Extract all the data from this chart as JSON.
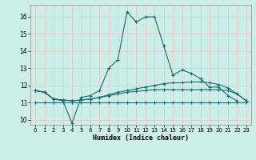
{
  "title": "",
  "xlabel": "Humidex (Indice chaleur)",
  "bg_color": "#cceee8",
  "grid_color": "#e8c8c8",
  "line_color": "#1a6b6b",
  "xlim": [
    -0.5,
    23.5
  ],
  "ylim": [
    9.7,
    16.7
  ],
  "yticks": [
    10,
    11,
    12,
    13,
    14,
    15,
    16
  ],
  "xticks": [
    0,
    1,
    2,
    3,
    4,
    5,
    6,
    7,
    8,
    9,
    10,
    11,
    12,
    13,
    14,
    15,
    16,
    17,
    18,
    19,
    20,
    21,
    22,
    23
  ],
  "series1_x": [
    0,
    1,
    2,
    3,
    4,
    5,
    6,
    7,
    8,
    9,
    10,
    11,
    12,
    13,
    14,
    15,
    16,
    17,
    18,
    19,
    20,
    21,
    22
  ],
  "series1_y": [
    11.7,
    11.6,
    11.2,
    11.1,
    9.8,
    11.3,
    11.4,
    11.7,
    13.0,
    13.5,
    16.3,
    15.7,
    16.0,
    16.0,
    14.3,
    12.6,
    12.9,
    12.7,
    12.4,
    11.9,
    11.9,
    11.4,
    11.1
  ],
  "series2_x": [
    0,
    1,
    2,
    3,
    4,
    5,
    6,
    7,
    8,
    9,
    10,
    11,
    12,
    13,
    14,
    15,
    16,
    17,
    18,
    19,
    20,
    21,
    22,
    23
  ],
  "series2_y": [
    11.7,
    11.6,
    11.2,
    11.15,
    11.1,
    11.15,
    11.2,
    11.3,
    11.45,
    11.6,
    11.7,
    11.8,
    11.9,
    12.0,
    12.1,
    12.15,
    12.15,
    12.2,
    12.2,
    12.15,
    12.05,
    11.85,
    11.5,
    11.1
  ],
  "series3_x": [
    0,
    1,
    2,
    3,
    4,
    5,
    6,
    7,
    8,
    9,
    10,
    11,
    12,
    13,
    14,
    15,
    16,
    17,
    18,
    19,
    20,
    21,
    22,
    23
  ],
  "series3_y": [
    11.7,
    11.6,
    11.2,
    11.15,
    11.1,
    11.15,
    11.2,
    11.3,
    11.4,
    11.5,
    11.6,
    11.65,
    11.7,
    11.75,
    11.75,
    11.75,
    11.75,
    11.75,
    11.75,
    11.75,
    11.75,
    11.7,
    11.5,
    11.1
  ],
  "series4_x": [
    0,
    1,
    2,
    3,
    4,
    5,
    6,
    7,
    8,
    9,
    10,
    11,
    12,
    13,
    14,
    15,
    16,
    17,
    18,
    19,
    20,
    21,
    22,
    23
  ],
  "series4_y": [
    11.0,
    11.0,
    11.0,
    11.0,
    11.0,
    11.0,
    11.0,
    11.0,
    11.0,
    11.0,
    11.0,
    11.0,
    11.0,
    11.0,
    11.0,
    11.0,
    11.0,
    11.0,
    11.0,
    11.0,
    11.0,
    11.0,
    11.0,
    11.0
  ]
}
